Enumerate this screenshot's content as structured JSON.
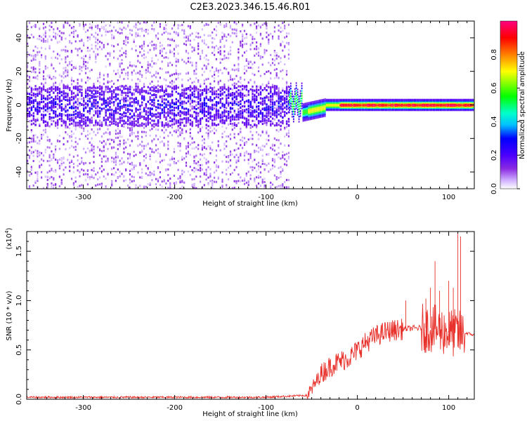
{
  "title": "C2E3.2023.346.15.46.R01",
  "chart_data": [
    {
      "type": "heatmap",
      "xlabel": "Height of straight line (km)",
      "ylabel": "Frequency (Hz)",
      "xlim": [
        -362,
        128
      ],
      "ylim": [
        -50,
        50
      ],
      "xticks": [
        -300,
        -200,
        -100,
        0,
        100
      ],
      "yticks": [
        -40,
        -20,
        0,
        20,
        40
      ],
      "colorbar": {
        "label": "Normalized spectral amplitude",
        "range": [
          0,
          1
        ],
        "ticks": [
          "0.0",
          "0.2",
          "0.4",
          "0.6",
          "0.8"
        ],
        "colors": [
          "#ffffff",
          "#d0b0ff",
          "#8a2be2",
          "#4b00ff",
          "#0000ff",
          "#00bfff",
          "#00ffcc",
          "#00ff00",
          "#ffff00",
          "#ff8000",
          "#ff0000",
          "#ff0080"
        ]
      },
      "regions": [
        {
          "x_from": -362,
          "x_to": -75,
          "note_value": "broadband noise, amplitude ~0.05-0.25 across all frequencies, concentrated band within ±10 Hz"
        },
        {
          "x_from": -75,
          "x_to": 128,
          "note_value": "narrow band near 0 Hz, amplitude up to ~0.9"
        }
      ]
    },
    {
      "type": "line",
      "xlabel": "Height of straight line (km)",
      "ylabel": "SNR (10 * v/v)",
      "scale_label": "(x10",
      "scale_exp": "4",
      "xlim": [
        -362,
        128
      ],
      "ylim": [
        0,
        1.7
      ],
      "xticks": [
        -300,
        -200,
        -100,
        0,
        100
      ],
      "yticks": [
        "0.0",
        "0.5",
        "1.0",
        "1.5"
      ],
      "series": [
        {
          "color": "#e8302a",
          "x": [
            -362,
            -300,
            -200,
            -100,
            -55,
            -50,
            -45,
            -40,
            -35,
            -30,
            -25,
            -20,
            -15,
            -10,
            -5,
            0,
            10,
            20,
            30,
            40,
            50,
            60,
            70,
            80,
            90,
            100,
            110,
            115,
            120,
            128
          ],
          "y": [
            0.02,
            0.02,
            0.02,
            0.02,
            0.04,
            0.1,
            0.18,
            0.25,
            0.3,
            0.33,
            0.36,
            0.38,
            0.4,
            0.42,
            0.45,
            0.5,
            0.58,
            0.64,
            0.68,
            0.7,
            0.71,
            0.72,
            0.72,
            0.72,
            0.7,
            0.68,
            0.66,
            0.66,
            0.67,
            0.65
          ]
        }
      ],
      "peaks": [
        {
          "x": 53,
          "y": 1.0
        },
        {
          "x": 75,
          "y": 1.02
        },
        {
          "x": 80,
          "y": 1.13
        },
        {
          "x": 85,
          "y": 1.4
        },
        {
          "x": 90,
          "y": 1.1
        },
        {
          "x": 100,
          "y": 1.2
        },
        {
          "x": 105,
          "y": 1.13
        },
        {
          "x": 110,
          "y": 1.68
        },
        {
          "x": 113,
          "y": 1.65
        }
      ]
    }
  ]
}
